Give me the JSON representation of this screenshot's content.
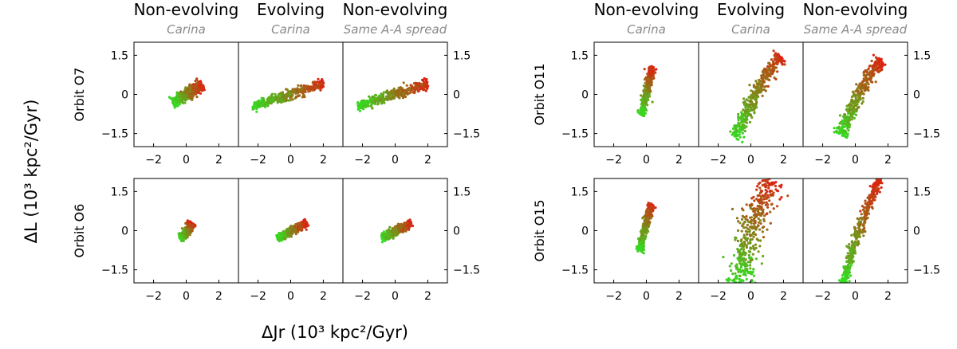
{
  "chart_data": {
    "type": "scatter",
    "xlabel": "ΔJr (10³ kpc²/Gyr)",
    "ylabel": "ΔL (10³ kpc²/Gyr)",
    "xlim": [
      -3.2,
      3.2
    ],
    "ylim": [
      -2.0,
      2.0
    ],
    "xticks": [
      -2,
      0,
      2
    ],
    "yticks": [
      1.5,
      0,
      -1.5
    ],
    "xtick_labels": [
      "−2",
      "0",
      "2"
    ],
    "ytick_labels_left": [
      "1.5",
      "0",
      "−1.5"
    ],
    "ytick_labels_right": [
      "1.5",
      "0",
      "−1.5"
    ],
    "color_scale": [
      "#33dd22",
      "#dd2211"
    ],
    "column_groups": [
      {
        "columns": [
          {
            "title": "Non-evolving",
            "subtitle": "Carina"
          },
          {
            "title": "Evolving",
            "subtitle": "Carina"
          },
          {
            "title": "Non-evolving",
            "subtitle": "Same A-A spread"
          }
        ],
        "rows": [
          {
            "orbit": "Orbit O7",
            "panels": [
              {
                "points": [
                  [
                    -0.8,
                    -0.35
                  ],
                  [
                    -0.6,
                    -0.25
                  ],
                  [
                    -0.4,
                    -0.2
                  ],
                  [
                    -0.2,
                    -0.1
                  ],
                  [
                    0,
                    0
                  ],
                  [
                    0.2,
                    0.1
                  ],
                  [
                    0.4,
                    0.15
                  ],
                  [
                    0.6,
                    0.25
                  ],
                  [
                    0.8,
                    0.3
                  ],
                  [
                    1.0,
                    0.4
                  ]
                ],
                "spread": 0.1
              },
              {
                "points": [
                  [
                    -2.3,
                    -0.45
                  ],
                  [
                    -1.8,
                    -0.35
                  ],
                  [
                    -1.3,
                    -0.25
                  ],
                  [
                    -0.8,
                    -0.15
                  ],
                  [
                    -0.3,
                    -0.05
                  ],
                  [
                    0.2,
                    0.05
                  ],
                  [
                    0.7,
                    0.15
                  ],
                  [
                    1.2,
                    0.25
                  ],
                  [
                    1.7,
                    0.35
                  ],
                  [
                    2.0,
                    0.4
                  ]
                ],
                "spread": 0.09
              },
              {
                "points": [
                  [
                    -2.3,
                    -0.45
                  ],
                  [
                    -1.8,
                    -0.35
                  ],
                  [
                    -1.3,
                    -0.25
                  ],
                  [
                    -0.8,
                    -0.15
                  ],
                  [
                    -0.3,
                    -0.05
                  ],
                  [
                    0.2,
                    0.05
                  ],
                  [
                    0.7,
                    0.15
                  ],
                  [
                    1.2,
                    0.25
                  ],
                  [
                    1.7,
                    0.35
                  ],
                  [
                    2.0,
                    0.4
                  ]
                ],
                "spread": 0.09
              }
            ]
          },
          {
            "orbit": "Orbit O6",
            "panels": [
              {
                "points": [
                  [
                    -0.35,
                    -0.3
                  ],
                  [
                    -0.2,
                    -0.2
                  ],
                  [
                    -0.05,
                    -0.1
                  ],
                  [
                    0.1,
                    0.0
                  ],
                  [
                    0.2,
                    0.1
                  ],
                  [
                    0.3,
                    0.2
                  ],
                  [
                    0.35,
                    0.3
                  ]
                ],
                "spread": 0.08
              },
              {
                "points": [
                  [
                    -0.8,
                    -0.3
                  ],
                  [
                    -0.5,
                    -0.2
                  ],
                  [
                    -0.2,
                    -0.1
                  ],
                  [
                    0.1,
                    0.0
                  ],
                  [
                    0.4,
                    0.1
                  ],
                  [
                    0.7,
                    0.2
                  ],
                  [
                    1.0,
                    0.3
                  ]
                ],
                "spread": 0.07
              },
              {
                "points": [
                  [
                    -0.8,
                    -0.3
                  ],
                  [
                    -0.5,
                    -0.2
                  ],
                  [
                    -0.2,
                    -0.1
                  ],
                  [
                    0.1,
                    0.0
                  ],
                  [
                    0.4,
                    0.1
                  ],
                  [
                    0.7,
                    0.2
                  ],
                  [
                    1.0,
                    0.3
                  ]
                ],
                "spread": 0.07
              }
            ]
          }
        ]
      },
      {
        "columns": [
          {
            "title": "Non-evolving",
            "subtitle": "Carina"
          },
          {
            "title": "Evolving",
            "subtitle": "Carina"
          },
          {
            "title": "Non-evolving",
            "subtitle": "Same A-A spread"
          }
        ],
        "rows": [
          {
            "orbit": "Orbit O11",
            "panels": [
              {
                "points": [
                  [
                    -0.3,
                    -0.8
                  ],
                  [
                    -0.2,
                    -0.5
                  ],
                  [
                    -0.1,
                    -0.2
                  ],
                  [
                    0.0,
                    0.1
                  ],
                  [
                    0.1,
                    0.35
                  ],
                  [
                    0.2,
                    0.6
                  ],
                  [
                    0.3,
                    0.85
                  ],
                  [
                    0.35,
                    1.05
                  ]
                ],
                "spread": 0.07
              },
              {
                "points": [
                  [
                    -0.9,
                    -1.7
                  ],
                  [
                    -0.7,
                    -1.3
                  ],
                  [
                    -0.4,
                    -0.9
                  ],
                  [
                    -0.1,
                    -0.5
                  ],
                  [
                    0.2,
                    -0.1
                  ],
                  [
                    0.5,
                    0.3
                  ],
                  [
                    0.9,
                    0.7
                  ],
                  [
                    1.3,
                    1.05
                  ],
                  [
                    1.7,
                    1.35
                  ],
                  [
                    1.8,
                    1.45
                  ]
                ],
                "spread": 0.14
              },
              {
                "points": [
                  [
                    -0.9,
                    -1.55
                  ],
                  [
                    -0.7,
                    -1.2
                  ],
                  [
                    -0.4,
                    -0.8
                  ],
                  [
                    -0.1,
                    -0.4
                  ],
                  [
                    0.2,
                    0.0
                  ],
                  [
                    0.5,
                    0.35
                  ],
                  [
                    0.9,
                    0.75
                  ],
                  [
                    1.3,
                    1.05
                  ],
                  [
                    1.6,
                    1.3
                  ]
                ],
                "spread": 0.12
              }
            ]
          },
          {
            "orbit": "Orbit O15",
            "panels": [
              {
                "points": [
                  [
                    -0.4,
                    -0.8
                  ],
                  [
                    -0.3,
                    -0.5
                  ],
                  [
                    -0.2,
                    -0.2
                  ],
                  [
                    -0.05,
                    0.1
                  ],
                  [
                    0.05,
                    0.4
                  ],
                  [
                    0.15,
                    0.65
                  ],
                  [
                    0.25,
                    0.85
                  ],
                  [
                    0.35,
                    1.0
                  ]
                ],
                "spread": 0.07
              },
              {
                "points": [
                  [
                    -0.6,
                    -2.0
                  ],
                  [
                    -0.6,
                    -1.6
                  ],
                  [
                    -0.5,
                    -1.2
                  ],
                  [
                    -0.4,
                    -0.8
                  ],
                  [
                    -0.2,
                    -0.4
                  ],
                  [
                    0.0,
                    0.0
                  ],
                  [
                    0.2,
                    0.4
                  ],
                  [
                    0.5,
                    0.8
                  ],
                  [
                    0.8,
                    1.2
                  ],
                  [
                    1.1,
                    1.6
                  ],
                  [
                    1.3,
                    2.0
                  ]
                ],
                "spread": 0.3
              },
              {
                "points": [
                  [
                    -0.7,
                    -2.0
                  ],
                  [
                    -0.6,
                    -1.6
                  ],
                  [
                    -0.4,
                    -1.2
                  ],
                  [
                    -0.2,
                    -0.8
                  ],
                  [
                    0.0,
                    -0.4
                  ],
                  [
                    0.2,
                    0.0
                  ],
                  [
                    0.45,
                    0.4
                  ],
                  [
                    0.7,
                    0.8
                  ],
                  [
                    0.95,
                    1.2
                  ],
                  [
                    1.2,
                    1.6
                  ],
                  [
                    1.45,
                    2.0
                  ]
                ],
                "spread": 0.09
              }
            ]
          }
        ]
      }
    ]
  }
}
